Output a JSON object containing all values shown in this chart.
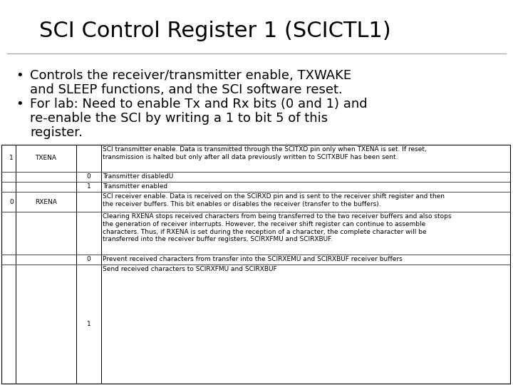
{
  "title": "SCI Control Register 1 (SCICTL1)",
  "bg_color": "#ffffff",
  "title_color": "#000000",
  "title_fontsize": 22,
  "bullet1_line1": "Controls the receiver/transmitter enable, TXWAKE",
  "bullet1_line2": "and SLEEP functions, and the SCI software reset.",
  "bullet2_line1": "For lab: Need to enable Tx and Rx bits (0 and 1) and",
  "bullet2_line2": "re-enable the SCI by writing a 1 to bit 5 of this",
  "bullet2_line3": "register.",
  "bullet_fontsize": 13,
  "table_fontsize": 6.5,
  "table": {
    "rows": [
      {
        "bit": "1",
        "name": "TXENA",
        "value": "",
        "description": "SCI transmitter enable. Data is transmitted through the SCITXD pin only when TXENA is set. If reset,\ntransmission is halted but only after all data previously written to SCITXBUF has been sent."
      },
      {
        "bit": "",
        "name": "",
        "value": "0",
        "description": "Transmitter disabledU"
      },
      {
        "bit": "",
        "name": "",
        "value": "1",
        "description": "Transmitter enabled"
      },
      {
        "bit": "0",
        "name": "RXENA",
        "value": "",
        "description": "SCI receiver enable. Data is received on the SCIRXD pin and is sent to the receiver shift register and then\nthe receiver buffers. This bit enables or disables the receiver (transfer to the buffers)."
      },
      {
        "bit": "",
        "name": "",
        "value": "",
        "description": "Clearing RXENA stops received characters from being transferred to the two receiver buffers and also stops\nthe generation of receiver interrupts. However, the receiver shift register can continue to assemble\ncharacters. Thus, if RXENA is set during the reception of a character, the complete character will be\ntransferred into the receiver buffer registers, SCIRXFMU and SCIRXBUF."
      },
      {
        "bit": "",
        "name": "",
        "value": "0",
        "description": "Prevent received characters from transfer into the SCIRXEMU and SCIRXBUF receiver buffers"
      },
      {
        "bit": "",
        "name": "",
        "value": "1",
        "description": "Send received characters to SCIRXFMU and SCIRXBUF"
      }
    ]
  }
}
